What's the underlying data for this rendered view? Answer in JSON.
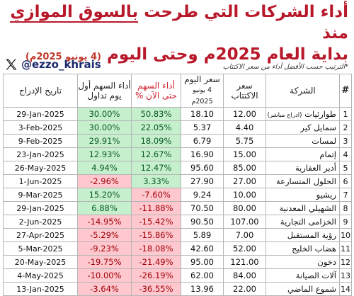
{
  "title": {
    "line1_pre": "أداء الشركات التي طرحت ",
    "line1_highlight": "بالسوق الموازي",
    "line1_post": " منذ",
    "line2": "بداية العام 2025م وحتى اليوم ",
    "line2_date": "(4 يونيو 2025م)"
  },
  "handle": "@ezzo_khrais",
  "note": "*الترتيب حسب الأفضل أداء من سعر الاكتتاب",
  "headers": {
    "num": "#",
    "company": "الشركة",
    "ipo_price": "سعر الاكتتاب",
    "price_today": "سعر اليوم",
    "price_today_date": "4 يونيو 2025م",
    "perf_now": "أداء السهم حتى الآن %",
    "perf_first_day": "أداء السهم أول يوم تداول",
    "listing_date": "تاريخ الإدراج"
  },
  "rows": [
    {
      "num": "1",
      "name": "طوارئيات",
      "sub": "(ادراج مباشر)",
      "ipo": "12.00",
      "today": "18.10",
      "perf": "50.83%",
      "first": "30.00%",
      "date": "29-Jan-2025"
    },
    {
      "num": "2",
      "name": "سمايل كير",
      "sub": "",
      "ipo": "4.40",
      "today": "5.37",
      "perf": "22.05%",
      "first": "30.00%",
      "date": "3-Feb-2025"
    },
    {
      "num": "3",
      "name": "لمسات",
      "sub": "",
      "ipo": "5.75",
      "today": "6.79",
      "perf": "18.09%",
      "first": "29.91%",
      "date": "9-Feb-2025"
    },
    {
      "num": "4",
      "name": "إتمام",
      "sub": "",
      "ipo": "15.00",
      "today": "16.90",
      "perf": "12.67%",
      "first": "12.93%",
      "date": "23-Jan-2025"
    },
    {
      "num": "5",
      "name": "أدير العقارية",
      "sub": "",
      "ipo": "85.00",
      "today": "95.60",
      "perf": "12.47%",
      "first": "4.94%",
      "date": "26-May-2025"
    },
    {
      "num": "6",
      "name": "الحلول المتسارعة",
      "sub": "",
      "ipo": "27.00",
      "today": "27.90",
      "perf": "3.33%",
      "first": "-2.96%",
      "date": "1-Jun-2025"
    },
    {
      "num": "7",
      "name": "ريشيو",
      "sub": "",
      "ipo": "10.00",
      "today": "9.24",
      "perf": "-7.60%",
      "first": "15.20%",
      "date": "9-Mar-2025"
    },
    {
      "num": "8",
      "name": "الشهيلي المعدنية",
      "sub": "",
      "ipo": "80.00",
      "today": "70.50",
      "perf": "-11.88%",
      "first": "6.88%",
      "date": "29-Jan-2025"
    },
    {
      "num": "9",
      "name": "الخزامى التجارية",
      "sub": "",
      "ipo": "107.00",
      "today": "90.50",
      "perf": "-15.42%",
      "first": "-14.95%",
      "date": "2-Jun-2025"
    },
    {
      "num": "10",
      "name": "رؤية المستقبل",
      "sub": "",
      "ipo": "7.00",
      "today": "5.89",
      "perf": "-15.86%",
      "first": "-5.29%",
      "date": "27-Apr-2025"
    },
    {
      "num": "11",
      "name": "هضاب الخليج",
      "sub": "",
      "ipo": "52.00",
      "today": "42.60",
      "perf": "-18.08%",
      "first": "-9.23%",
      "date": "5-Mar-2025"
    },
    {
      "num": "12",
      "name": "دخون",
      "sub": "",
      "ipo": "121.00",
      "today": "95.00",
      "perf": "-21.49%",
      "first": "-19.75%",
      "date": "20-May-2025"
    },
    {
      "num": "13",
      "name": "آلات الصيانة",
      "sub": "",
      "ipo": "84.00",
      "today": "62.00",
      "perf": "-26.19%",
      "first": "-10.00%",
      "date": "4-May-2025"
    },
    {
      "num": "14",
      "name": "شموع الماضي",
      "sub": "",
      "ipo": "22.00",
      "today": "13.96",
      "perf": "-36.55%",
      "first": "-3.64%",
      "date": "13-Jan-2025"
    }
  ],
  "colors": {
    "positive_bg": "#c6efce",
    "negative_bg": "#ffc7ce",
    "title": "#b8192a"
  }
}
